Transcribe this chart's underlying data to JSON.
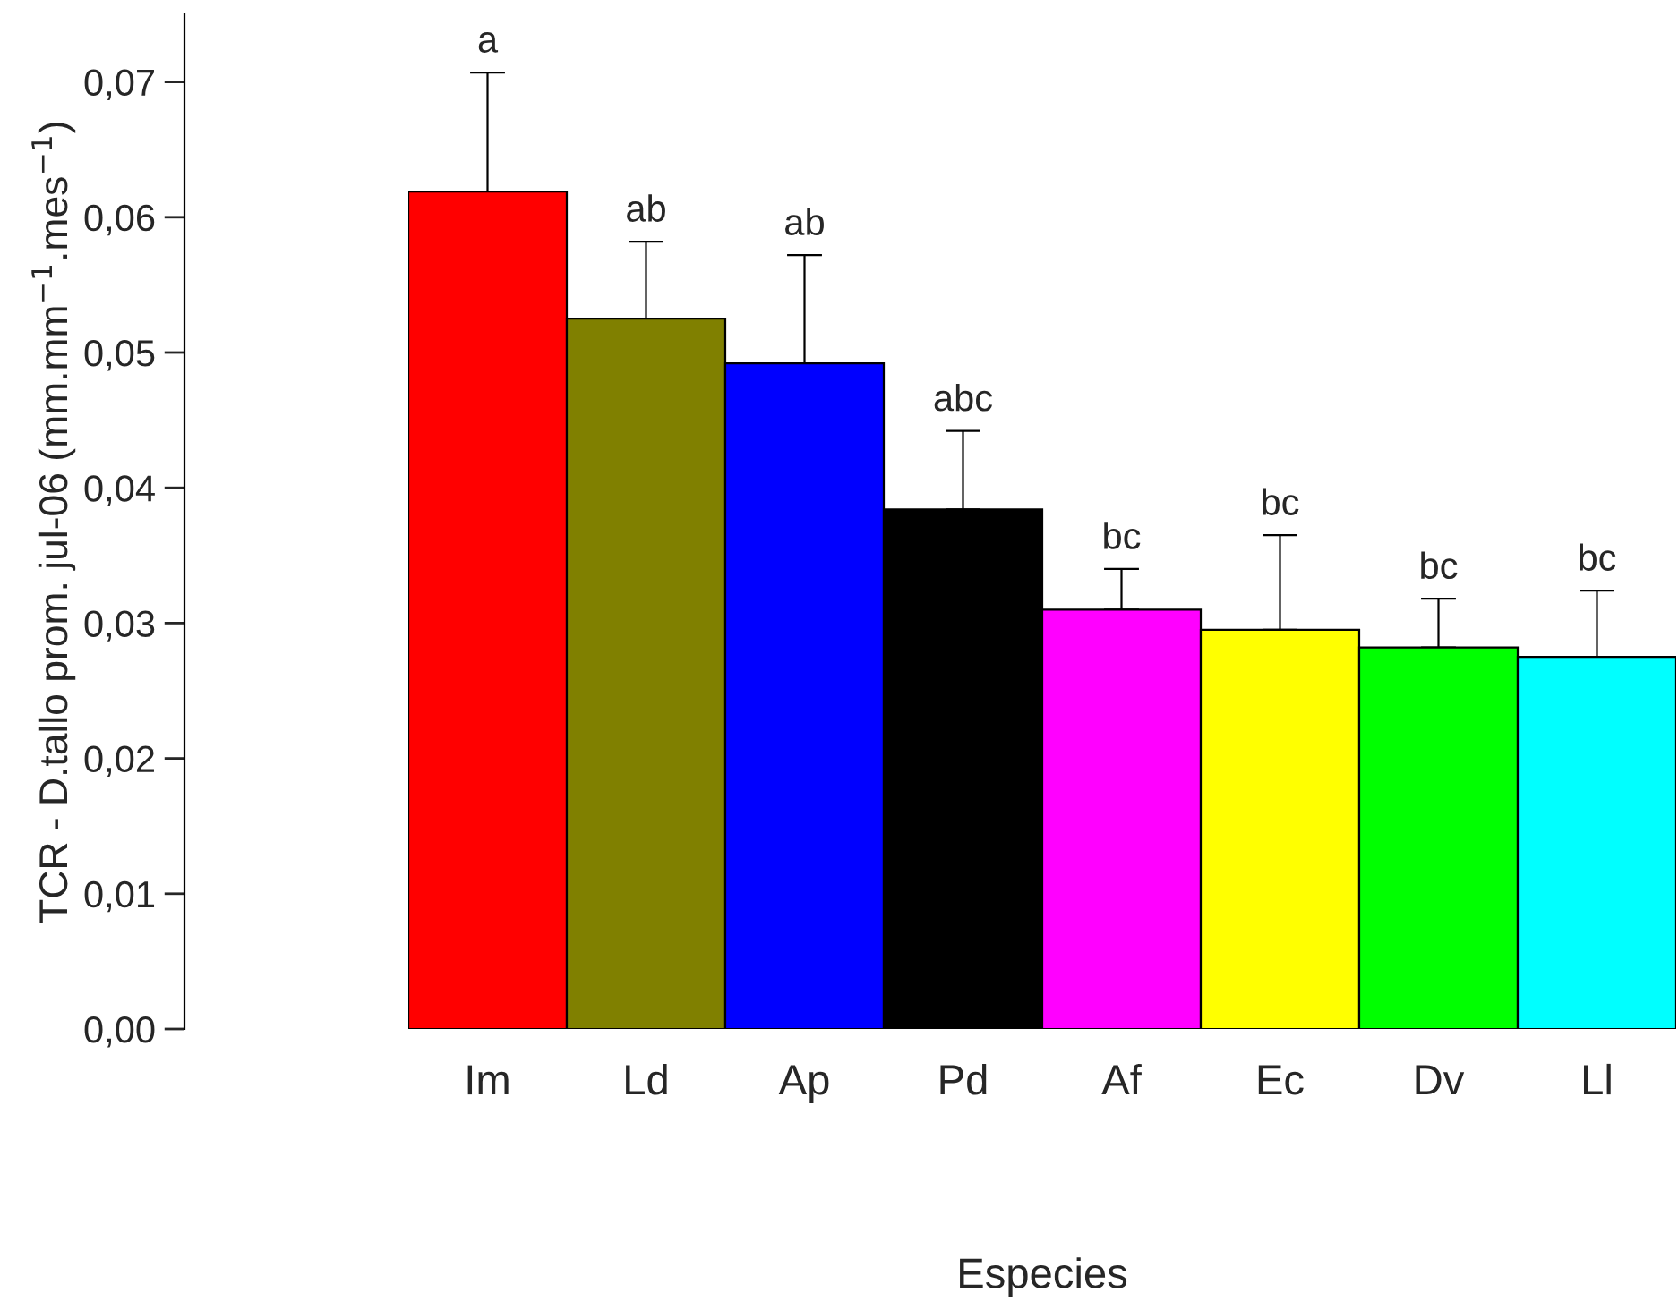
{
  "chart_data": {
    "type": "bar",
    "xlabel": "Especies",
    "ylabel": "TCR - D.tallo prom. jul-06 (mm.mm$^{−1}$.mes$^{−1}$)",
    "categories": [
      "Im",
      "Ld",
      "Ap",
      "Pd",
      "Af",
      "Ec",
      "Dv",
      "Ll"
    ],
    "values": [
      0.0619,
      0.0525,
      0.0492,
      0.0384,
      0.031,
      0.0295,
      0.0282,
      0.0275
    ],
    "colors": [
      "#ff0000",
      "#808000",
      "#0000ff",
      "#000000",
      "#ff00ff",
      "#ffff00",
      "#00ff00",
      "#00ffff"
    ],
    "errors": [
      [
        0.0619,
        0.0707
      ],
      [
        0.0525,
        0.0582
      ],
      [
        0.0492,
        0.0572
      ],
      [
        0.0384,
        0.0442
      ],
      [
        0.031,
        0.034
      ],
      [
        0.0295,
        0.0365
      ],
      [
        0.0282,
        0.0318
      ],
      [
        0.0275,
        0.0324
      ]
    ],
    "ylim": [
      0,
      0.075
    ],
    "yticks": [
      {
        "value": 0,
        "label": "0,00"
      },
      {
        "value": 0.01,
        "label": "0,01"
      },
      {
        "value": 0.02,
        "label": "0,02"
      },
      {
        "value": 0.03,
        "label": "0,03"
      },
      {
        "value": 0.04,
        "label": "0,04"
      },
      {
        "value": 0.05,
        "label": "0,05"
      },
      {
        "value": 0.06,
        "label": "0,06"
      },
      {
        "value": 0.07,
        "label": "0,07"
      }
    ],
    "annotations": [
      {
        "text": "a",
        "x": "Im",
        "y": 0.0707
      },
      {
        "text": "ab",
        "x": "Ld",
        "y": 0.0582
      },
      {
        "text": "ab",
        "x": "Ap",
        "y": 0.0572
      },
      {
        "text": "abc",
        "x": "Pd",
        "y": 0.0442
      },
      {
        "text": "bc",
        "x": "Af",
        "y": 0.034
      },
      {
        "text": "bc",
        "x": "Ec",
        "y": 0.0365
      },
      {
        "text": "bc",
        "x": "Dv",
        "y": 0.0318
      },
      {
        "text": "bc",
        "x": "Ll",
        "y": 0.0324
      }
    ],
    "grid": false,
    "legend": false
  }
}
